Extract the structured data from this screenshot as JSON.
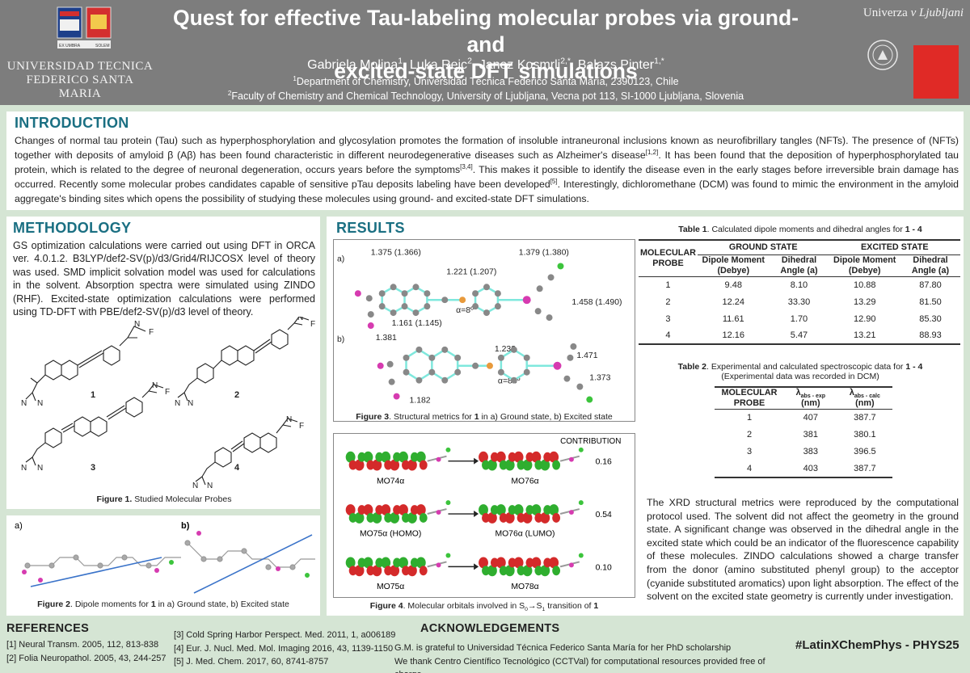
{
  "header": {
    "title_line1": "Quest for effective Tau-labeling molecular probes via ground- and",
    "title_line2": "excited-state DFT simulations",
    "authors": [
      {
        "name": "Gabriela Molina",
        "sup": "1"
      },
      {
        "name": "Luka Rejc",
        "sup": "2"
      },
      {
        "name": "Janez Kosmrlj",
        "sup": "2,*"
      },
      {
        "name": "Balazs Pinter",
        "sup": "1,*"
      }
    ],
    "aff1_sup": "1",
    "aff1": "Department of Chemistry, Universidad Técnica Federico Santa María, 2390123, Chile",
    "aff2_sup": "2",
    "aff2": "Faculty of Chemistry and Chemical Technology, University of Ljubljana, Vecna pot 113, SI-1000 Ljubljana, Slovenia",
    "usm_line1": "UNIVERSIDAD TECNICA",
    "usm_line2": "FEDERICO SANTA MARIA",
    "usm_motto_left": "EX UMBRA",
    "usm_motto_right": "SOLEM",
    "lj_name_a": "Univerza ",
    "lj_name_b": "v Ljubljani",
    "colors": {
      "header_bg": "#7d7d7d",
      "accent": "#1a6f82",
      "lj_red": "#e02a26",
      "page_bg": "#d5e5d4"
    }
  },
  "intro": {
    "heading": "INTRODUCTION",
    "t1": "Changes of normal tau protein (Tau) such as hyperphosphorylation and glycosylation promotes the formation of insoluble intraneuronal inclusions known as neurofibrillary tangles (NFTs). The presence of (NFTs) together with deposits of amyloid β (Aβ) has been found characteristic in different neurodegenerative diseases such as Alzheimer's disease",
    "s1": "[1,2]",
    "t2": ". It has been found that the deposition of hyperphosphorylated tau protein, which is related to the degree of neuronal degeneration, occurs years before the symptoms",
    "s2": "[3,4]",
    "t3": ". This makes it possible to identify the disease even in the early stages before irreversible brain damage has occurred. Recently some molecular probes candidates capable of sensitive pTau deposits labeling have been developed",
    "s3": "[5]",
    "t4": ". Interestingly, dichloromethane (DCM) was found to mimic the environment in the amyloid aggregate's binding sites which opens the possibility of studying these molecules using ground- and excited-state DFT simulations."
  },
  "methodology": {
    "heading": "METHODOLOGY",
    "text": "GS optimization calculations were carried out using DFT in ORCA ver. 4.0.1.2. B3LYP/def2-SV(p)/d3/Grid4/RIJCOSX level of theory was used. SMD implicit solvation model was used for calculations in the solvent. Absorption spectra were simulated using ZINDO (RHF). Excited-state optimization calculations were performed using TD-DFT with PBE/def2-SV(p)/d3 level of theory.",
    "probe_labels": [
      "1",
      "2",
      "3",
      "4"
    ],
    "atom_N": "N",
    "atom_F": "F",
    "fig1_bold": "Figure 1.",
    "fig1_text": " Studied Molecular Probes",
    "fig2_a": "a)",
    "fig2_b": "b)",
    "fig2_bold": "Figure 2",
    "fig2_text": ". Dipole moments for ",
    "fig2_num": "1",
    "fig2_text2": " in a) Ground state, b) Excited state"
  },
  "results": {
    "heading": "RESULTS",
    "fig3": {
      "a_label": "a)",
      "b_label": "b)",
      "a_values": [
        "1.375 (1.366)",
        "1.221 (1.207)",
        "1.379 (1.380)",
        "1.458 (1.490)",
        "1.161 (1.145)",
        "α=8º"
      ],
      "b_values": [
        "1.381",
        "1.233",
        "1.471",
        "1.373",
        "1.182",
        "α=88º"
      ],
      "cap_bold": "Figure 3",
      "cap_text": ". Structural metrics for ",
      "cap_num": "1",
      "cap_text2": " in a) Ground state, b) Excited state"
    },
    "fig4": {
      "contribution_label": "CONTRIBUTION",
      "rows": [
        {
          "from": "MO74α",
          "to": "MO76α",
          "value": "0.16"
        },
        {
          "from": "MO75α (HOMO)",
          "to": "MO76α (LUMO)",
          "value": "0.54"
        },
        {
          "from": "MO75α",
          "to": "MO78α",
          "value": "0.10"
        }
      ],
      "cap_bold": "Figure 4",
      "cap_text": ". Molecular orbitals involved in S",
      "cap_s0": "0",
      "cap_arrow": "→S",
      "cap_s1": "1",
      "cap_text2": " transition of ",
      "cap_num": "1"
    },
    "table1": {
      "cap_bold": "Table 1",
      "cap_text": ". Calculated dipole moments and dihedral angles for ",
      "cap_range": "1 - 4",
      "col_probe": "MOLECULAR PROBE",
      "group_gs": "GROUND STATE",
      "group_es": "EXCITED STATE",
      "sub_dipole": "Dipole Moment (Debye)",
      "sub_dihedral": "Dihedral Angle (a)",
      "rows": [
        [
          "1",
          "9.48",
          "8.10",
          "10.88",
          "87.80"
        ],
        [
          "2",
          "12.24",
          "33.30",
          "13.29",
          "81.50"
        ],
        [
          "3",
          "11.61",
          "1.70",
          "12.90",
          "85.30"
        ],
        [
          "4",
          "12.16",
          "5.47",
          "13.21",
          "88.93"
        ]
      ]
    },
    "table2": {
      "cap_bold": "Table 2",
      "cap_text": ". Experimental and calculated spectroscopic data for ",
      "cap_range": "1 - 4",
      "cap_line2": "(Experimental data was recorded in DCM)",
      "col_probe": "MOLECULAR PROBE",
      "col_exp": "λ",
      "col_exp_sub": "abs - exp",
      "col_calc": "λ",
      "col_calc_sub": "abs - calc",
      "unit": "(nm)",
      "rows": [
        [
          "1",
          "407",
          "387.7"
        ],
        [
          "2",
          "381",
          "380.1"
        ],
        [
          "3",
          "383",
          "396.5"
        ],
        [
          "4",
          "403",
          "387.7"
        ]
      ]
    },
    "text": "The XRD structural metrics were reproduced by the computational protocol used. The solvent did not affect the geometry in the ground state. A significant change was observed in the dihedral angle in the excited state which could be an indicator of the fluorescence capability of these molecules. ZINDO calculations showed a charge transfer from the donor (amino substituted phenyl group) to the acceptor (cyanide substituted aromatics) upon light absorption. The effect of the solvent on the excited state geometry is currently under investigation."
  },
  "references": {
    "heading": "REFERENCES",
    "col_a": [
      "[1] Neural Transm. 2005, 112, 813-838",
      "[2] Folia Neuropathol. 2005, 43, 244-257"
    ],
    "col_b": [
      "[3] Cold Spring Harbor Perspect. Med. 2011, 1, a006189",
      "[4] Eur. J. Nucl. Med. Mol. Imaging 2016, 43, 1139-1150",
      "[5] J. Med. Chem. 2017, 60, 8741-8757"
    ]
  },
  "acknowledgements": {
    "heading": "ACKNOWLEDGEMENTS",
    "line1": "G.M. is grateful to Universidad Técnica Federico Santa María for her PhD scholarship",
    "line2": "We thank Centro Científico Tecnológico (CCTVal) for computational resources provided free of charge"
  },
  "hashtag": "#LatinXChemPhys - PHYS25"
}
